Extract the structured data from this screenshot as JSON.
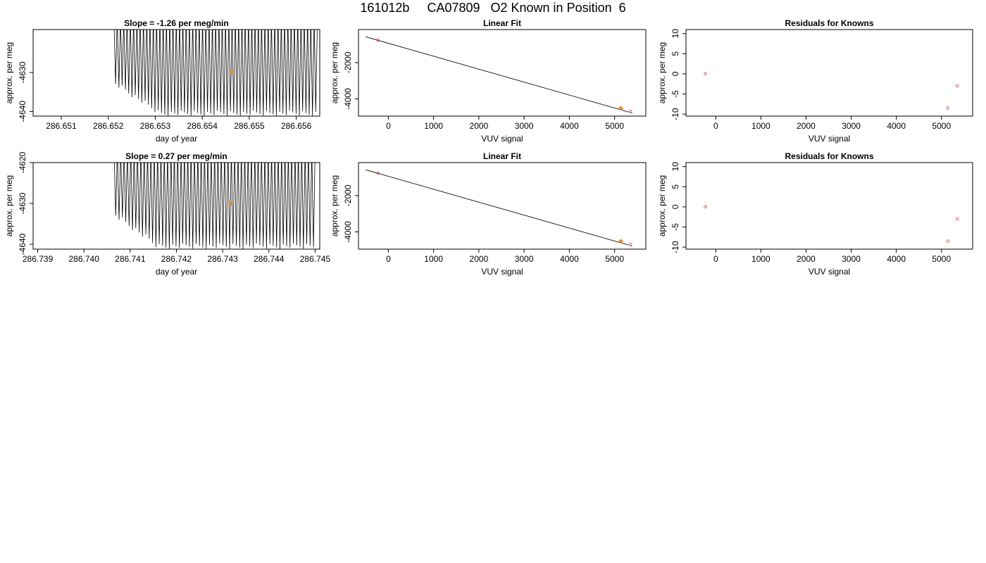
{
  "page_title": "161012b     CA07809   O2 Known in Position  6",
  "colors": {
    "trace": "#000000",
    "highlight": "#e6820e",
    "known_point": "#d9534f",
    "frame": "#000000"
  },
  "chart_data": [
    {
      "id": "row1-timeseries",
      "type": "line",
      "title": "Slope =  -1.26  per meg/min",
      "xlabel": "day of year",
      "ylabel": "approx. per meg",
      "xlim": [
        286.6504,
        286.6565
      ],
      "ylim": [
        -4641.2,
        -4619.0
      ],
      "x_ticks": [
        "286.651",
        "286.652",
        "286.653",
        "286.654",
        "286.655",
        "286.656"
      ],
      "y_ticks": [
        "-4630",
        "-4640"
      ],
      "trace": {
        "x_start": 286.65212,
        "x_end": 286.65645,
        "y_low": -4641.2,
        "y_high": -4619.0,
        "cycles": 62,
        "ramp_until": 286.6531
      },
      "highlight_point": {
        "x": 286.65462,
        "y": -4630.0
      }
    },
    {
      "id": "row1-linear-fit",
      "type": "scatter",
      "title": "Linear Fit",
      "xlabel": "VUV signal",
      "ylabel": "approx. per meg",
      "xlim": [
        -660,
        5690
      ],
      "ylim": [
        -4950,
        -180
      ],
      "x_ticks": [
        "0",
        "1000",
        "2000",
        "3000",
        "4000",
        "5000"
      ],
      "y_ticks": [
        "-2000",
        "-4000"
      ],
      "fit_line": {
        "x": [
          -500,
          5390
        ],
        "y": [
          -580,
          -4780
        ]
      },
      "points": [
        {
          "x": -230,
          "y": -760
        },
        {
          "x": 5140,
          "y": -4520
        },
        {
          "x": 5350,
          "y": -4690
        }
      ],
      "highlight_point": {
        "x": 5140,
        "y": -4520
      }
    },
    {
      "id": "row1-residuals",
      "type": "scatter",
      "title": "Residuals for Knowns",
      "xlabel": "VUV signal",
      "ylabel": "approx. per meg",
      "xlim": [
        -660,
        5690
      ],
      "ylim": [
        -10.5,
        11.0
      ],
      "x_ticks": [
        "0",
        "1000",
        "2000",
        "3000",
        "4000",
        "5000"
      ],
      "y_ticks": [
        "10",
        "5",
        "0",
        "-5",
        "-10"
      ],
      "points": [
        {
          "x": -230,
          "y": 0.0
        },
        {
          "x": 5140,
          "y": -8.5
        },
        {
          "x": 5350,
          "y": -3.0
        }
      ]
    },
    {
      "id": "row2-timeseries",
      "type": "line",
      "title": "Slope =  0.27  per meg/min",
      "xlabel": "day of year",
      "ylabel": "approx. per meg",
      "xlim": [
        286.7389,
        286.7451
      ],
      "ylim": [
        -4641.2,
        -4620.0
      ],
      "x_ticks": [
        "286.739",
        "286.740",
        "286.741",
        "286.742",
        "286.743",
        "286.744",
        "286.745"
      ],
      "y_ticks": [
        "-4620",
        "-4630",
        "-4640"
      ],
      "trace": {
        "x_start": 286.74065,
        "x_end": 286.745,
        "y_low": -4641.2,
        "y_high": -4620.0,
        "cycles": 60,
        "ramp_until": 286.7416
      },
      "highlight_point": {
        "x": 286.74317,
        "y": -4630.0
      }
    },
    {
      "id": "row2-linear-fit",
      "type": "scatter",
      "title": "Linear Fit",
      "xlabel": "VUV signal",
      "ylabel": "approx. per meg",
      "xlim": [
        -660,
        5690
      ],
      "ylim": [
        -4950,
        -180
      ],
      "x_ticks": [
        "0",
        "1000",
        "2000",
        "3000",
        "4000",
        "5000"
      ],
      "y_ticks": [
        "-2000",
        "-4000"
      ],
      "fit_line": {
        "x": [
          -500,
          5390
        ],
        "y": [
          -580,
          -4780
        ]
      },
      "points": [
        {
          "x": -230,
          "y": -760
        },
        {
          "x": 5140,
          "y": -4520
        },
        {
          "x": 5350,
          "y": -4690
        }
      ],
      "highlight_point": {
        "x": 5140,
        "y": -4520
      }
    },
    {
      "id": "row2-residuals",
      "type": "scatter",
      "title": "Residuals for Knowns",
      "xlabel": "VUV signal",
      "ylabel": "approx. per meg",
      "xlim": [
        -660,
        5690
      ],
      "ylim": [
        -10.5,
        11.0
      ],
      "x_ticks": [
        "0",
        "1000",
        "2000",
        "3000",
        "4000",
        "5000"
      ],
      "y_ticks": [
        "10",
        "5",
        "0",
        "-5",
        "-10"
      ],
      "points": [
        {
          "x": -230,
          "y": 0.0
        },
        {
          "x": 5140,
          "y": -8.5
        },
        {
          "x": 5350,
          "y": -3.0
        }
      ]
    }
  ]
}
